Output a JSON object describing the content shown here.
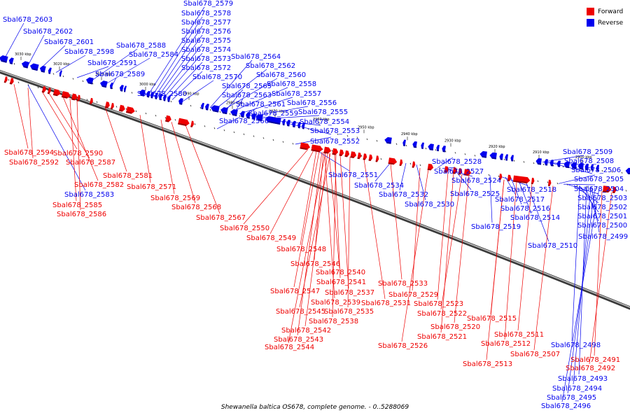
{
  "caption": "Shewanella baltica OS678, complete genome. - 0..5288069",
  "legend": [
    {
      "label": "Forward",
      "color": "#ee0000"
    },
    {
      "label": "Reverse",
      "color": "#0000ee"
    }
  ],
  "ticks": [
    "3030 kbp",
    "3020 kbp",
    "3010 kbp",
    "3000 kbp",
    "2990 kbp",
    "2980 kbp",
    "2970 kbp",
    "2960 kbp",
    "2950 kbp",
    "2940 kbp",
    "2930 kbp",
    "2920 kbp",
    "2910 kbp",
    "2900 kbp"
  ],
  "reverse_genes": [
    "Sbal678_2603",
    "Sbal678_2602",
    "Sbal678_2601",
    "Sbal678_2598",
    "Sbal678_2591",
    "Sbal678_2588",
    "Sbal678_2584",
    "Sbal678_2589",
    "Sbal678_2580",
    "Sbal678_2579",
    "Sbal678_2578",
    "Sbal678_2577",
    "Sbal678_2576",
    "Sbal678_2575",
    "Sbal678_2574",
    "Sbal678_2573",
    "Sbal678_2572",
    "Sbal678_2570",
    "Sbal678_2564",
    "Sbal678_2562",
    "Sbal678_2560",
    "Sbal678_2565",
    "Sbal678_2558",
    "Sbal678_2563",
    "Sbal678_2557",
    "Sbal678_2561",
    "Sbal678_2556",
    "Sbal678_2559",
    "Sbal678_2555",
    "Sbal678_2566",
    "Sbal678_2554",
    "Sbal678_2553",
    "Sbal678_2552",
    "Sbal678_2551",
    "Sbal678_2534",
    "Sbal678_2532",
    "Sbal678_2530",
    "Sbal678_2528",
    "Sbal678_2527",
    "Sbal678_2524",
    "Sbal678_2525",
    "Sbal678_2518",
    "Sbal678_2517",
    "Sbal678_2516",
    "Sbal678_2514",
    "Sbal678_2519",
    "Sbal678_2510",
    "Sbal678_2509",
    "Sbal678_2508",
    "Sbal678_2506",
    "Sbal678_2505",
    "Sbal678_2504",
    "Sbal678_2503",
    "Sbal678_2502",
    "Sbal678_2501",
    "Sbal678_2500",
    "Sbal678_2499",
    "Sbal678_2583",
    "Sbal678_2498",
    "Sbal678_2493",
    "Sbal678_2494",
    "Sbal678_2495",
    "Sbal678_2496"
  ],
  "forward_genes": [
    "Sbal678_2594",
    "Sbal678_2590",
    "Sbal678_2592",
    "Sbal678_2587",
    "Sbal678_2581",
    "Sbal678_2582",
    "Sbal678_2571",
    "Sbal678_2569",
    "Sbal678_2585",
    "Sbal678_2568",
    "Sbal678_2586",
    "Sbal678_2567",
    "Sbal678_2550",
    "Sbal678_2549",
    "Sbal678_2548",
    "Sbal678_2546",
    "Sbal678_2540",
    "Sbal678_2541",
    "Sbal678_2547",
    "Sbal678_2537",
    "Sbal678_2533",
    "Sbal678_2539",
    "Sbal678_2529",
    "Sbal678_2531",
    "Sbal678_2523",
    "Sbal678_2545",
    "Sbal678_2535",
    "Sbal678_2522",
    "Sbal678_2538",
    "Sbal678_2542",
    "Sbal678_2520",
    "Sbal678_2543",
    "Sbal678_2521",
    "Sbal678_2544",
    "Sbal678_2526",
    "Sbal678_2515",
    "Sbal678_2511",
    "Sbal678_2512",
    "Sbal678_2507",
    "Sbal678_2513",
    "Sbal678_2491",
    "Sbal678_2492"
  ]
}
